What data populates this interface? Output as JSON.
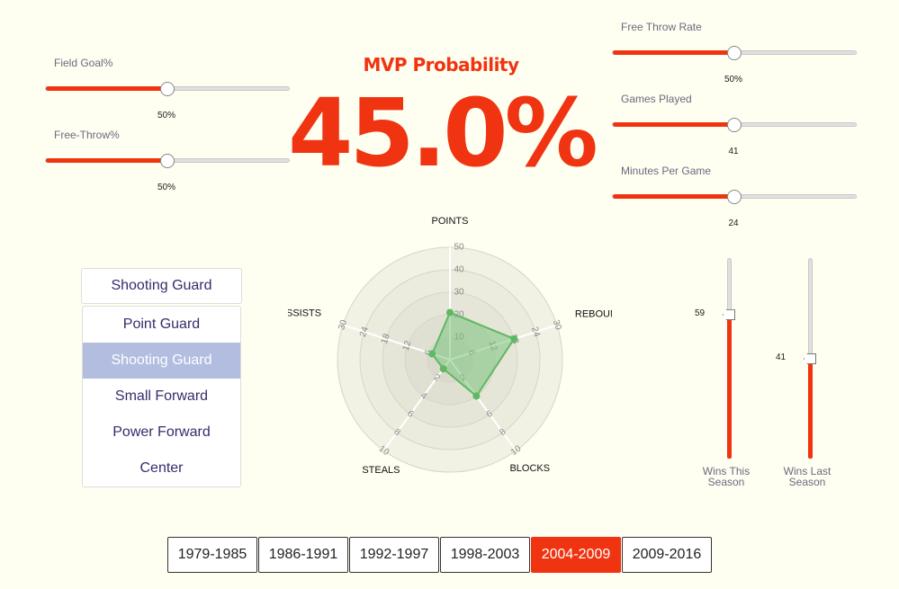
{
  "header": {
    "title": "MVP Probability",
    "probability": "45.0%"
  },
  "left_sliders": [
    {
      "label": "Field Goal%",
      "value_text": "50%",
      "fraction": 0.5
    },
    {
      "label": "Free-Throw%",
      "value_text": "50%",
      "fraction": 0.5
    }
  ],
  "right_sliders": [
    {
      "label": "Free Throw Rate",
      "value_text": "50%",
      "fraction": 0.5
    },
    {
      "label": "Games Played",
      "value_text": "41",
      "fraction": 0.5
    },
    {
      "label": "Minutes Per Game",
      "value_text": "24",
      "fraction": 0.5
    }
  ],
  "positions": {
    "selected": "Shooting Guard",
    "options": [
      "Point Guard",
      "Shooting Guard",
      "Small Forward",
      "Power Forward",
      "Center"
    ],
    "active_index": 1
  },
  "wins_sliders": [
    {
      "label_line1": "Wins This",
      "label_line2": "Season",
      "value_text": "59",
      "fraction": 0.72
    },
    {
      "label_line1": "Wins Last",
      "label_line2": "Season",
      "value_text": "41",
      "fraction": 0.5
    }
  ],
  "eras": {
    "options": [
      "1979-1985",
      "1986-1991",
      "1992-1997",
      "1998-2003",
      "2004-2009",
      "2009-2016"
    ],
    "active_index": 4
  },
  "chart_data": {
    "type": "radar",
    "axes": [
      {
        "label": "POINTS",
        "max": 50,
        "ticks": [
          "10",
          "20",
          "30",
          "40",
          "50"
        ],
        "value": 21
      },
      {
        "label": "REBOUNDS",
        "max": 30,
        "ticks": [
          "6",
          "12",
          "18",
          "24",
          "30"
        ],
        "value": 18
      },
      {
        "label": "BLOCKS",
        "max": 10,
        "ticks": [
          "2",
          "4",
          "6",
          "8",
          "10"
        ],
        "value": 4
      },
      {
        "label": "STEALS",
        "max": 10,
        "ticks": [
          "2",
          "4",
          "6",
          "8",
          "10"
        ],
        "value": 1
      },
      {
        "label": "ASSISTS",
        "max": 30,
        "ticks": [
          "6",
          "12",
          "18",
          "24",
          "30"
        ],
        "value": 5
      }
    ],
    "fill_color": "#7cc47f",
    "grid": true
  },
  "colors": {
    "accent": "#f03412",
    "background": "#fefef1",
    "position_text": "#3a2a6b",
    "selected_position_bg": "#b3bde0"
  }
}
